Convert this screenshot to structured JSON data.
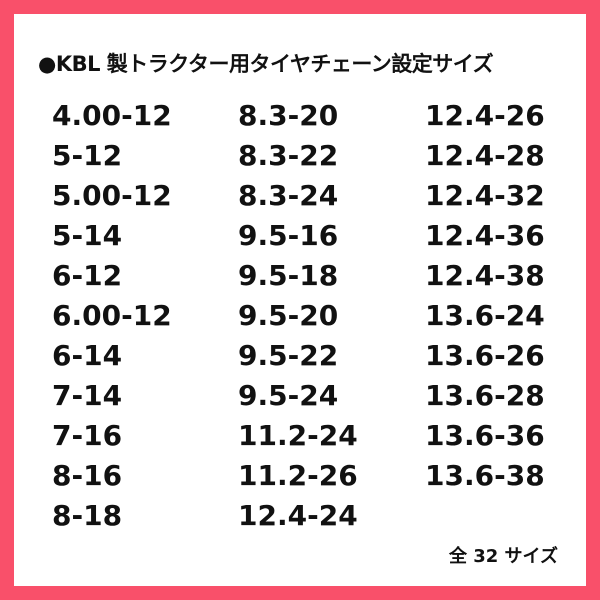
{
  "border_color": "#f9506a",
  "title": "●KBL 製トラクター用タイヤチェーン設定サイズ",
  "columns": [
    [
      "4.00-12",
      "5-12",
      "5.00-12",
      "5-14",
      "6-12",
      "6.00-12",
      "6-14",
      "7-14",
      "7-16",
      "8-16",
      "8-18"
    ],
    [
      "8.3-20",
      "8.3-22",
      "8.3-24",
      "9.5-16",
      "9.5-18",
      "9.5-20",
      "9.5-22",
      "9.5-24",
      "11.2-24",
      "11.2-26",
      "12.4-24"
    ],
    [
      "12.4-26",
      "12.4-28",
      "12.4-32",
      "12.4-36",
      "12.4-38",
      "13.6-24",
      "13.6-26",
      "13.6-28",
      "13.6-36",
      "13.6-38"
    ]
  ],
  "footer": "全 32 サイズ"
}
